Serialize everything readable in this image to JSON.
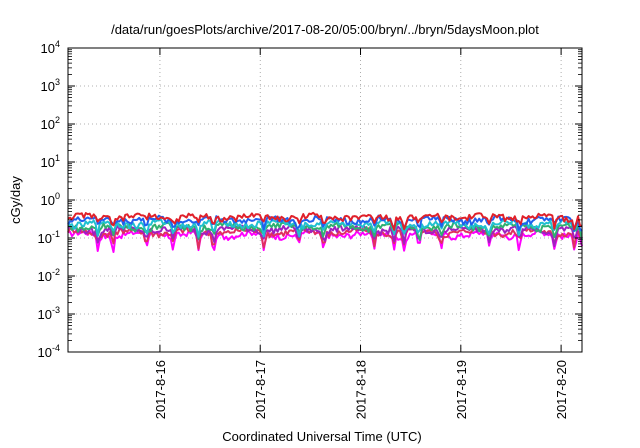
{
  "chart_data": {
    "type": "line",
    "title": "/data/run/goesPlots/archive/2017-08-20/05:00/bryn/../bryn/5daysMoon.plot",
    "xlabel": "Coordinated Universal Time (UTC)",
    "ylabel": "cGy/day",
    "yscale": "log",
    "ylim_exponents": [
      -4,
      4
    ],
    "y_tick_base": "10",
    "y_tick_exponents": [
      "-4",
      "-3",
      "-2",
      "-1",
      "0",
      "1",
      "2",
      "3",
      "4"
    ],
    "x_range_days": [
      "2017-08-15 02:00",
      "2017-08-20 05:00"
    ],
    "x_ticks": [
      "2017-8-16",
      "2017-8-17",
      "2017-8-18",
      "2017-8-19",
      "2017-8-20"
    ],
    "grid": true,
    "series": [
      {
        "color": "#e0202a",
        "base": 0.36,
        "dip": 0.5
      },
      {
        "color": "#2060ee",
        "base": 0.31,
        "dip": 0.55
      },
      {
        "color": "#20c0d0",
        "base": 0.24,
        "dip": 0.6
      },
      {
        "color": "#30b070",
        "base": 0.2,
        "dip": 0.6
      },
      {
        "color": "#a020c0",
        "base": 0.17,
        "dip": 0.65
      },
      {
        "color": "#e03060",
        "base": 0.145,
        "dip": 0.7
      },
      {
        "color": "#ff00ff",
        "base": 0.125,
        "dip": 0.75
      }
    ],
    "dip_days": [
      0.3,
      0.45,
      0.78,
      1.05,
      1.3,
      1.45,
      1.95,
      2.3,
      2.55,
      3.05,
      3.25,
      3.35,
      3.5,
      3.72,
      4.2,
      4.5,
      4.85,
      5.05,
      5.12
    ]
  }
}
